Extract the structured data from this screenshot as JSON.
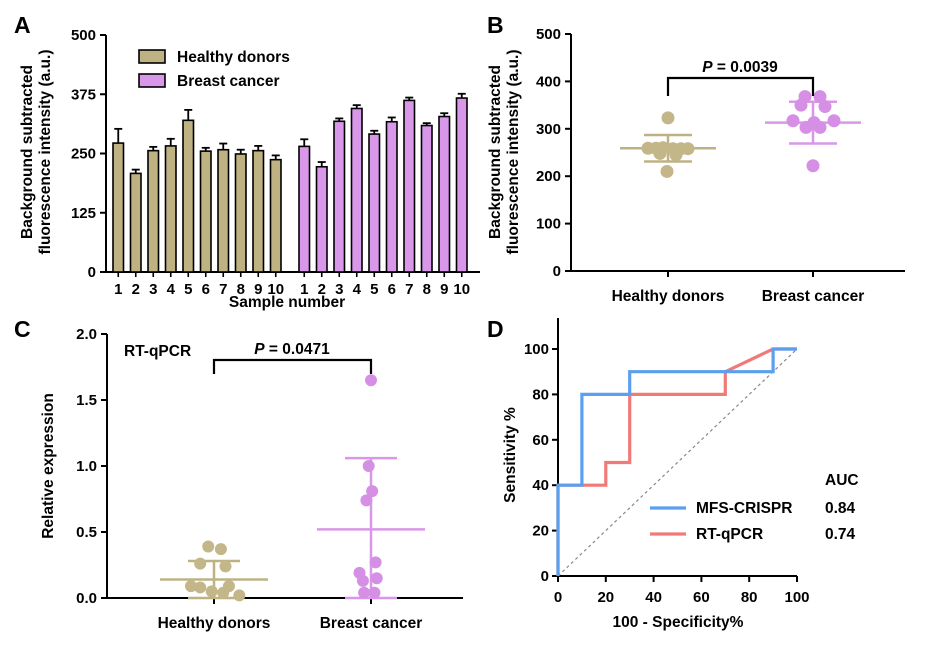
{
  "colors": {
    "healthy": "#beb283",
    "healthy_dot": "#c3b689",
    "cancer": "#d997ea",
    "cancer_dot": "#d590e6",
    "mfs": "#5a9ff0",
    "rtqpcr": "#f07a78",
    "diag": "#888888"
  },
  "chart_data": [
    {
      "panel": "A",
      "type": "bar",
      "ylabel": [
        "Background subtracted",
        "fluorescence intensity (a.u.)"
      ],
      "xlabel": "Sample number",
      "ylim": [
        0,
        500
      ],
      "yticks": [
        0,
        125,
        250,
        375,
        500
      ],
      "categories": [
        "1",
        "2",
        "3",
        "4",
        "5",
        "6",
        "7",
        "8",
        "9",
        "10"
      ],
      "series": [
        {
          "name": "Healthy donors",
          "values": [
            272,
            208,
            256,
            266,
            320,
            255,
            258,
            249,
            256,
            237
          ],
          "errors": [
            30,
            8,
            8,
            15,
            22,
            7,
            13,
            9,
            10,
            9
          ]
        },
        {
          "name": "Breast cancer",
          "values": [
            265,
            222,
            318,
            345,
            291,
            317,
            362,
            309,
            328,
            367
          ],
          "errors": [
            15,
            10,
            6,
            7,
            7,
            9,
            6,
            5,
            7,
            9
          ]
        }
      ]
    },
    {
      "panel": "B",
      "type": "scatter",
      "ylabel": [
        "Background subtracted",
        "fluorescence intensity (a.u.)"
      ],
      "ylim": [
        0,
        500
      ],
      "yticks": [
        0,
        100,
        200,
        300,
        400,
        500
      ],
      "categories": [
        "Healthy donors",
        "Breast cancer"
      ],
      "annotation": {
        "label": "P",
        "text": " = 0.0039"
      },
      "series": [
        {
          "name": "Healthy donors",
          "points": [
            [
              -0.2,
              259
            ],
            [
              -0.12,
              259
            ],
            [
              -0.05,
              260
            ],
            [
              0.05,
              258
            ],
            [
              0.13,
              258
            ],
            [
              0.2,
              258
            ],
            [
              -0.08,
              248
            ],
            [
              0.08,
              245
            ],
            [
              -0.01,
              210
            ],
            [
              0.0,
              323
            ]
          ],
          "mean": 259,
          "sd": 28
        },
        {
          "name": "Breast cancer",
          "points": [
            [
              -0.08,
              368
            ],
            [
              0.07,
              368
            ],
            [
              -0.12,
              350
            ],
            [
              0.12,
              347
            ],
            [
              -0.2,
              317
            ],
            [
              0.21,
              317
            ],
            [
              0.01,
              313
            ],
            [
              -0.07,
              303
            ],
            [
              0.07,
              303
            ],
            [
              0.0,
              222
            ]
          ],
          "mean": 313,
          "sd": 44
        }
      ]
    },
    {
      "panel": "C",
      "type": "scatter",
      "ylabel": "Relative expression",
      "ylim": [
        0,
        2.0
      ],
      "yticks": [
        "0.0",
        "0.5",
        "1.0",
        "1.5",
        "2.0"
      ],
      "categories": [
        "Healthy donors",
        "Breast cancer"
      ],
      "title": "RT-qPCR",
      "annotation": {
        "label": "P",
        "text": " = 0.0471"
      },
      "series": [
        {
          "name": "Healthy donors",
          "points": [
            [
              -0.05,
              0.39
            ],
            [
              0.06,
              0.37
            ],
            [
              -0.12,
              0.26
            ],
            [
              0.1,
              0.24
            ],
            [
              -0.2,
              0.09
            ],
            [
              -0.12,
              0.08
            ],
            [
              0.13,
              0.09
            ],
            [
              -0.02,
              0.05
            ],
            [
              0.08,
              0.04
            ],
            [
              0.22,
              0.02
            ]
          ],
          "mean": 0.14,
          "sd": 0.14
        },
        {
          "name": "Breast cancer",
          "points": [
            [
              0.0,
              1.65
            ],
            [
              -0.02,
              1.0
            ],
            [
              0.01,
              0.81
            ],
            [
              -0.04,
              0.74
            ],
            [
              0.04,
              0.27
            ],
            [
              -0.1,
              0.19
            ],
            [
              -0.07,
              0.13
            ],
            [
              0.05,
              0.15
            ],
            [
              -0.06,
              0.04
            ],
            [
              0.03,
              0.04
            ]
          ],
          "mean": 0.52,
          "sd": 0.54
        }
      ]
    },
    {
      "panel": "D",
      "type": "line",
      "xlabel": "100 - Specificity%",
      "ylabel": "Sensitivity %",
      "xlim": [
        0,
        100
      ],
      "ylim": [
        0,
        100
      ],
      "xticks": [
        0,
        20,
        40,
        60,
        80,
        100
      ],
      "yticks": [
        0,
        20,
        40,
        60,
        80,
        100
      ],
      "auc_title": "AUC",
      "series": [
        {
          "name": "MFS-CRISPR",
          "auc": "0.84",
          "points": [
            [
              0,
              0
            ],
            [
              0,
              40
            ],
            [
              10,
              40
            ],
            [
              10,
              80
            ],
            [
              30,
              80
            ],
            [
              30,
              90
            ],
            [
              90,
              90
            ],
            [
              90,
              100
            ],
            [
              100,
              100
            ]
          ]
        },
        {
          "name": "RT-qPCR",
          "auc": "0.74",
          "points": [
            [
              0,
              0
            ],
            [
              0,
              40
            ],
            [
              20,
              40
            ],
            [
              20,
              50
            ],
            [
              30,
              50
            ],
            [
              30,
              80
            ],
            [
              70,
              80
            ],
            [
              70,
              90
            ],
            [
              90,
              100
            ],
            [
              100,
              100
            ]
          ]
        }
      ]
    }
  ]
}
